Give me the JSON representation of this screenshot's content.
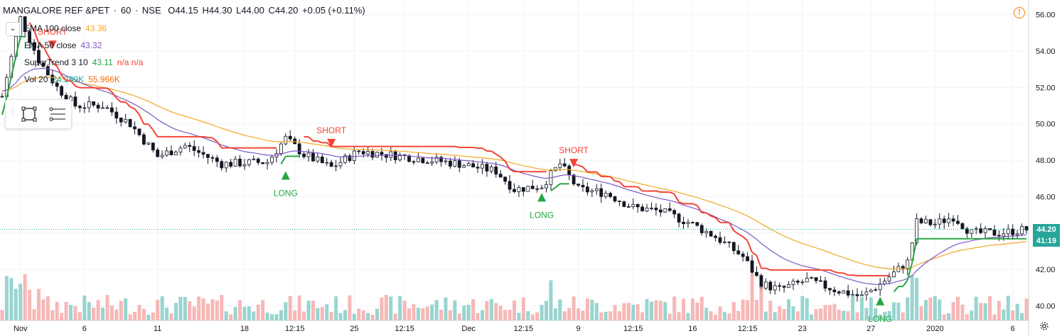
{
  "header": {
    "symbol": "MANGALORE REF &PET",
    "interval": "60",
    "exchange": "NSE",
    "separator": "·",
    "open": "O44.15",
    "high": "H44.30",
    "low": "L44.00",
    "close": "C44.20",
    "change": "+0.05 (+0.11%)"
  },
  "legend": [
    {
      "label": "EMA 100 close",
      "value": "43.36",
      "value2": "",
      "color": "#f5a623"
    },
    {
      "label": "EMA 50 close",
      "value": "43.32",
      "value2": "",
      "color": "#7e57c2"
    },
    {
      "label": "SuperTrend 3 10",
      "value": "43.11",
      "value2": "n/a n/a",
      "color": "#26a641",
      "color2": "#f44336"
    },
    {
      "label": "Vol 20",
      "value": "24.289K",
      "value2": "55.966K",
      "color": "#26a69a",
      "color2": "#ff6d00"
    }
  ],
  "price_tags": {
    "last_price": "44.20",
    "countdown": "41:19",
    "last_color": "#26a69a",
    "countdown_color": "#26a69a"
  },
  "icons": {
    "alert": "alert-icon",
    "settings": "gear-icon",
    "collapse": "chevron-down-icon"
  },
  "chart_data": {
    "type": "candlestick",
    "ylim": [
      39.2,
      56.8
    ],
    "y_ticks": [
      "56.00",
      "54.00",
      "52.00",
      "50.00",
      "48.00",
      "46.00",
      "44.00",
      "42.00",
      "40.00"
    ],
    "x_ticks": [
      {
        "label": "Nov",
        "x_index": 4
      },
      {
        "label": "6",
        "x_index": 18
      },
      {
        "label": "11",
        "x_index": 34
      },
      {
        "label": "18",
        "x_index": 53
      },
      {
        "label": "12:15",
        "x_index": 64
      },
      {
        "label": "25",
        "x_index": 77
      },
      {
        "label": "12:15",
        "x_index": 88
      },
      {
        "label": "Dec",
        "x_index": 102
      },
      {
        "label": "12:15",
        "x_index": 114
      },
      {
        "label": "9",
        "x_index": 126
      },
      {
        "label": "12:15",
        "x_index": 138
      },
      {
        "label": "16",
        "x_index": 151
      },
      {
        "label": "12:15",
        "x_index": 163
      },
      {
        "label": "23",
        "x_index": 175
      },
      {
        "label": "27",
        "x_index": 190
      },
      {
        "label": "2020",
        "x_index": 204
      },
      {
        "label": "6",
        "x_index": 221
      }
    ],
    "signals": [
      {
        "type": "SHORT",
        "x_index": 11,
        "price": 54.3,
        "dir": "down"
      },
      {
        "type": "LONG",
        "x_index": 62,
        "price": 47.2,
        "dir": "up"
      },
      {
        "type": "SHORT",
        "x_index": 72,
        "price": 48.9,
        "dir": "down"
      },
      {
        "type": "LONG",
        "x_index": 118,
        "price": 46.0,
        "dir": "up"
      },
      {
        "type": "SHORT",
        "x_index": 125,
        "price": 47.8,
        "dir": "down"
      },
      {
        "type": "LONG",
        "x_index": 192,
        "price": 40.3,
        "dir": "up"
      }
    ],
    "last_price_line": 44.2,
    "colors": {
      "up": "#26a69a",
      "down": "#ef5350",
      "candle": "#131722",
      "ema100": "#f5a623",
      "ema50": "#7e57c2",
      "st_up": "#26a641",
      "st_down": "#f44336",
      "vol_up": "#80cbc4",
      "vol_down": "#f5a6a4"
    }
  }
}
